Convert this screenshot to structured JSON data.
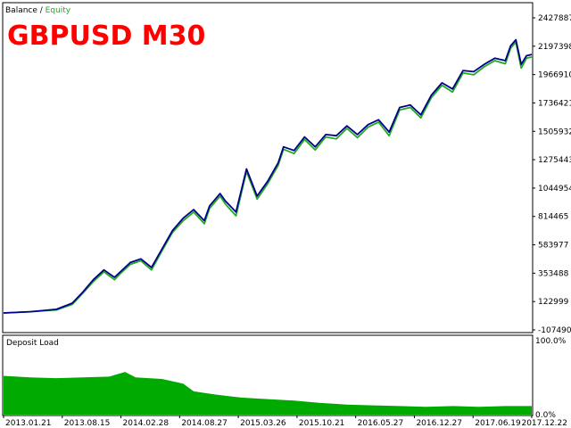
{
  "legend": {
    "balance": "Balance",
    "separator": " / ",
    "equity": "Equity"
  },
  "colors": {
    "balance": "#00008b",
    "equity": "#22aa22",
    "deposit_load": "#00aa00",
    "title": "#ff0000",
    "panel_border": "#000000",
    "background": "#ffffff"
  },
  "chart_data": [
    {
      "type": "line",
      "title": "GBPUSD M30",
      "y_ticks": [
        2427887,
        2197398,
        1966910,
        1736421,
        1505932,
        1275443,
        1044954,
        814465,
        583977,
        353488,
        122999,
        -107490
      ],
      "ylim": [
        -107490,
        2427887
      ],
      "x_ticks": [
        "2013.01.21",
        "2013.08.15",
        "2014.02.28",
        "2014.08.27",
        "2015.03.26",
        "2015.10.21",
        "2016.05.27",
        "2016.12.27",
        "2017.06.19",
        "2017.12.22"
      ],
      "grid": false,
      "legend_position": "top-left",
      "series": [
        {
          "name": "Balance",
          "x": [
            0.0,
            0.05,
            0.1,
            0.13,
            0.15,
            0.17,
            0.19,
            0.21,
            0.22,
            0.24,
            0.26,
            0.28,
            0.3,
            0.32,
            0.34,
            0.36,
            0.38,
            0.39,
            0.41,
            0.42,
            0.44,
            0.46,
            0.48,
            0.5,
            0.52,
            0.53,
            0.55,
            0.57,
            0.59,
            0.61,
            0.63,
            0.65,
            0.67,
            0.69,
            0.71,
            0.73,
            0.75,
            0.77,
            0.79,
            0.81,
            0.83,
            0.85,
            0.87,
            0.89,
            0.91,
            0.93,
            0.95,
            0.96,
            0.97,
            0.98,
            0.99,
            1.0
          ],
          "values": [
            30000,
            40000,
            60000,
            110000,
            200000,
            300000,
            380000,
            320000,
            360000,
            440000,
            470000,
            400000,
            550000,
            700000,
            800000,
            870000,
            780000,
            900000,
            1000000,
            940000,
            850000,
            1200000,
            980000,
            1100000,
            1250000,
            1380000,
            1350000,
            1460000,
            1380000,
            1480000,
            1470000,
            1550000,
            1480000,
            1560000,
            1600000,
            1500000,
            1700000,
            1720000,
            1640000,
            1800000,
            1900000,
            1850000,
            2000000,
            1990000,
            2050000,
            2100000,
            2080000,
            2200000,
            2250000,
            2050000,
            2120000,
            2130000
          ]
        },
        {
          "name": "Equity",
          "x": [
            0.0,
            0.05,
            0.1,
            0.13,
            0.15,
            0.17,
            0.19,
            0.21,
            0.22,
            0.24,
            0.26,
            0.28,
            0.3,
            0.32,
            0.34,
            0.36,
            0.38,
            0.39,
            0.41,
            0.42,
            0.44,
            0.46,
            0.48,
            0.5,
            0.52,
            0.53,
            0.55,
            0.57,
            0.59,
            0.61,
            0.63,
            0.65,
            0.67,
            0.69,
            0.71,
            0.73,
            0.75,
            0.77,
            0.79,
            0.81,
            0.83,
            0.85,
            0.87,
            0.89,
            0.91,
            0.93,
            0.95,
            0.96,
            0.97,
            0.98,
            0.99,
            1.0
          ],
          "values": [
            30000,
            40000,
            55000,
            100000,
            190000,
            285000,
            365000,
            300000,
            345000,
            425000,
            455000,
            380000,
            535000,
            685000,
            780000,
            850000,
            755000,
            880000,
            980000,
            915000,
            820000,
            1180000,
            955000,
            1080000,
            1230000,
            1360000,
            1325000,
            1440000,
            1355000,
            1460000,
            1445000,
            1530000,
            1455000,
            1540000,
            1580000,
            1470000,
            1680000,
            1700000,
            1615000,
            1780000,
            1880000,
            1825000,
            1980000,
            1965000,
            2030000,
            2080000,
            2055000,
            2180000,
            2230000,
            2020000,
            2100000,
            2110000
          ]
        }
      ]
    },
    {
      "type": "bar",
      "title": "Deposit Load",
      "y_ticks": [
        "100.0%",
        "0.0%"
      ],
      "ylim": [
        0,
        100
      ],
      "series": [
        {
          "name": "Deposit Load",
          "x": [
            0.0,
            0.05,
            0.1,
            0.15,
            0.2,
            0.23,
            0.25,
            0.3,
            0.34,
            0.36,
            0.4,
            0.45,
            0.5,
            0.55,
            0.6,
            0.65,
            0.7,
            0.75,
            0.8,
            0.85,
            0.9,
            0.95,
            1.0
          ],
          "values": [
            50,
            48,
            47,
            48,
            49,
            55,
            48,
            46,
            40,
            30,
            26,
            22,
            20,
            18,
            15,
            13,
            12,
            11,
            10,
            11,
            10,
            11,
            11
          ]
        }
      ]
    }
  ]
}
